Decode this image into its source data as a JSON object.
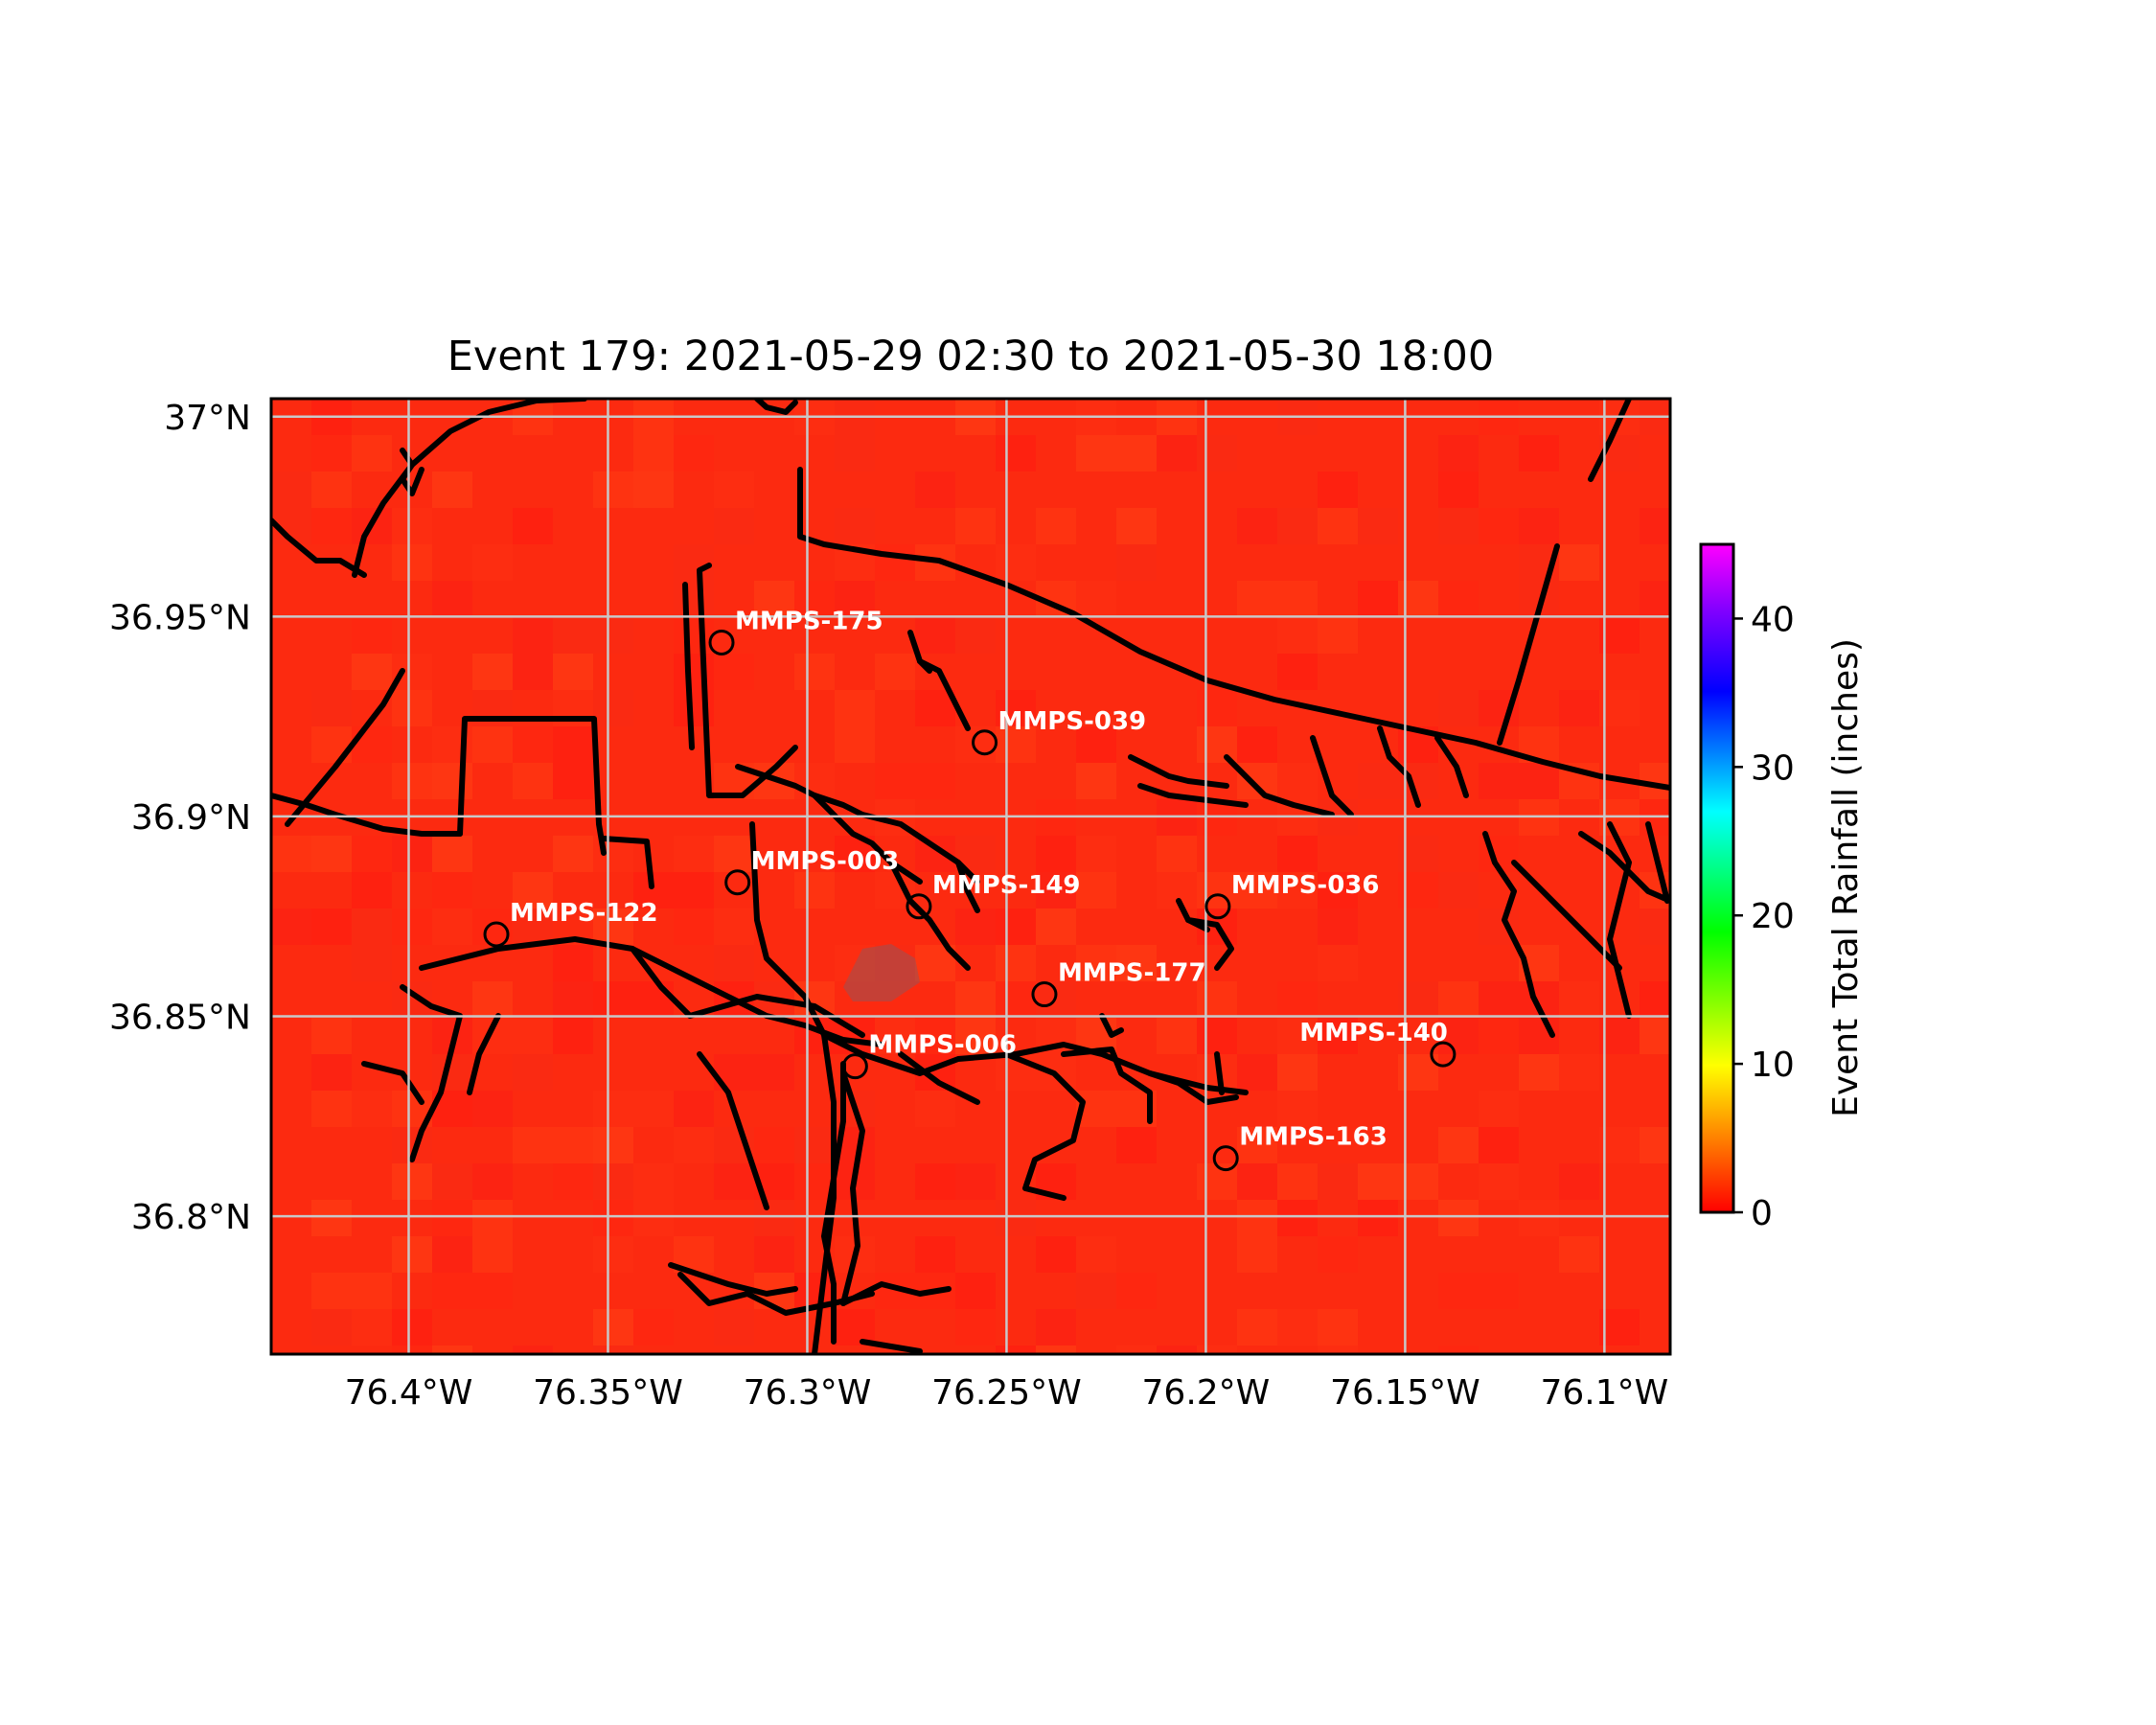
{
  "map": {
    "title": "Event 179: 2021-05-29 02:30 to 2021-05-30 18:00",
    "lon_range": [
      -76.4345,
      -76.0835
    ],
    "lat_range": [
      36.7655,
      37.0045
    ],
    "lon_ticks": [
      {
        "value": -76.4,
        "label": "76.4°W"
      },
      {
        "value": -76.35,
        "label": "76.35°W"
      },
      {
        "value": -76.3,
        "label": "76.3°W"
      },
      {
        "value": -76.25,
        "label": "76.25°W"
      },
      {
        "value": -76.2,
        "label": "76.2°W"
      },
      {
        "value": -76.15,
        "label": "76.15°W"
      },
      {
        "value": -76.1,
        "label": "76.1°W"
      }
    ],
    "lat_ticks": [
      {
        "value": 37.0,
        "label": "37°N"
      },
      {
        "value": 36.95,
        "label": "36.95°N"
      },
      {
        "value": 36.9,
        "label": "36.9°N"
      },
      {
        "value": 36.85,
        "label": "36.85°N"
      },
      {
        "value": 36.8,
        "label": "36.8°N"
      }
    ],
    "grid": true,
    "field": "Event Total Rainfall (inches)",
    "stations": [
      {
        "id": "MMPS-175",
        "lon": -76.3215,
        "lat": 36.9435,
        "label_side": "right"
      },
      {
        "id": "MMPS-039",
        "lon": -76.2555,
        "lat": 36.9185,
        "label_side": "right"
      },
      {
        "id": "MMPS-003",
        "lon": -76.3175,
        "lat": 36.8835,
        "label_side": "right"
      },
      {
        "id": "MMPS-149",
        "lon": -76.272,
        "lat": 36.8775,
        "label_side": "right"
      },
      {
        "id": "MMPS-036",
        "lon": -76.197,
        "lat": 36.8775,
        "label_side": "right"
      },
      {
        "id": "MMPS-122",
        "lon": -76.378,
        "lat": 36.8705,
        "label_side": "right"
      },
      {
        "id": "MMPS-177",
        "lon": -76.2405,
        "lat": 36.8555,
        "label_side": "right"
      },
      {
        "id": "MMPS-006",
        "lon": -76.288,
        "lat": 36.8375,
        "label_side": "right"
      },
      {
        "id": "MMPS-140",
        "lon": -76.1405,
        "lat": 36.8405,
        "label_side": "left"
      },
      {
        "id": "MMPS-163",
        "lon": -76.195,
        "lat": 36.8145,
        "label_side": "right"
      }
    ]
  },
  "colorbar": {
    "label": "Event Total Rainfall (inches)",
    "range": [
      0,
      45
    ],
    "ticks": [
      {
        "value": 0,
        "label": "0"
      },
      {
        "value": 10,
        "label": "10"
      },
      {
        "value": 20,
        "label": "20"
      },
      {
        "value": 30,
        "label": "30"
      },
      {
        "value": 40,
        "label": "40"
      }
    ],
    "colors": [
      "#ff0000",
      "#ff8000",
      "#ffff00",
      "#00ff00",
      "#00ffff",
      "#0000ff",
      "#8000ff",
      "#ff00ff"
    ]
  }
}
